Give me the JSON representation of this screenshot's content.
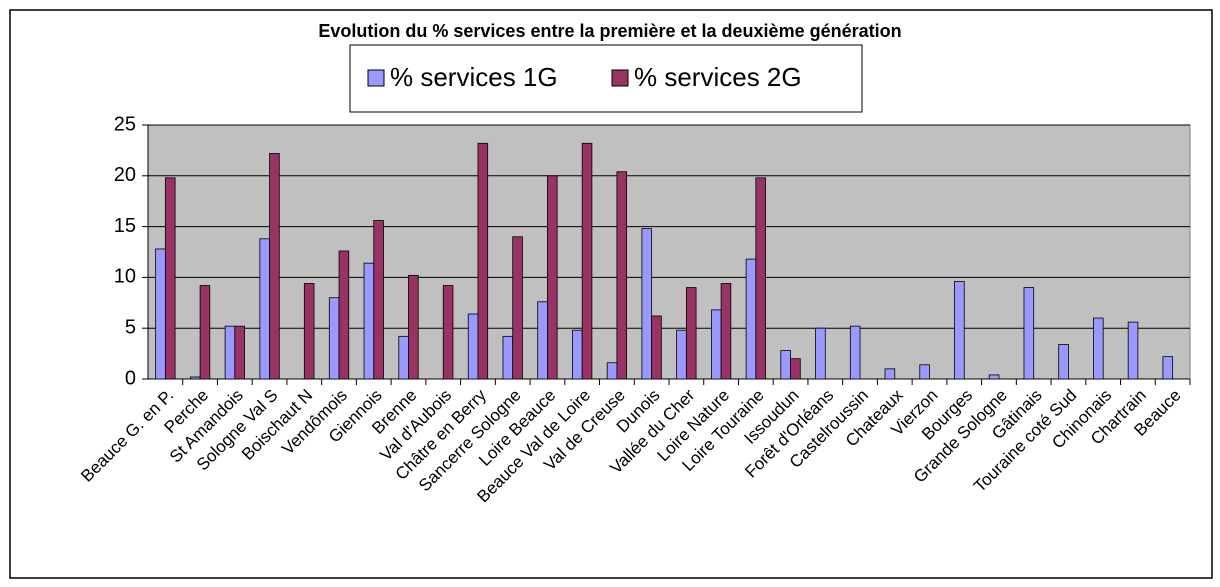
{
  "chart_data": {
    "type": "bar",
    "title": "Evolution du % services entre la première et la deuxième génération",
    "categories": [
      "Beauce G. en P.",
      "Perche",
      "St Amandois",
      "Sologne Val S",
      "Boischaut N",
      "Vendômois",
      "Giennois",
      "Brenne",
      "Val d'Aubois",
      "Châtre en Berry",
      "Sancerre Sologne",
      "Loire Beauce",
      "Beauce Val de Loire",
      "Val de Creuse",
      "Dunois",
      "Vallée du Cher",
      "Loire Nature",
      "Loire Touraine",
      "Issoudun",
      "Forêt d'Orléans",
      "Castelroussin",
      "Chateaux",
      "Vierzon",
      "Bourges",
      "Grande Sologne",
      "Gâtinais",
      "Touraine coté Sud",
      "Chinonais",
      "Chartrain",
      "Beauce"
    ],
    "series": [
      {
        "name": "% services 1G",
        "color": "#9999ff",
        "values": [
          12.8,
          0.2,
          5.2,
          13.8,
          null,
          8.0,
          11.4,
          4.2,
          null,
          6.4,
          4.2,
          7.6,
          4.8,
          1.6,
          14.8,
          4.8,
          6.8,
          11.8,
          2.8,
          5.0,
          5.2,
          1.0,
          1.4,
          9.6,
          0.4,
          9.0,
          3.4,
          6.0,
          5.6,
          2.2
        ]
      },
      {
        "name": "% services 2G",
        "color": "#993366",
        "values": [
          19.8,
          9.2,
          5.2,
          22.2,
          9.4,
          12.6,
          15.6,
          10.2,
          9.2,
          23.2,
          14.0,
          20.0,
          23.2,
          20.4,
          6.2,
          9.0,
          9.4,
          19.8,
          2.0,
          null,
          null,
          null,
          null,
          null,
          null,
          null,
          null,
          null,
          null,
          null
        ]
      }
    ],
    "ylim": [
      0,
      25
    ],
    "yticks": [
      0,
      5,
      10,
      15,
      20,
      25
    ],
    "grid": true,
    "legend": "top"
  }
}
